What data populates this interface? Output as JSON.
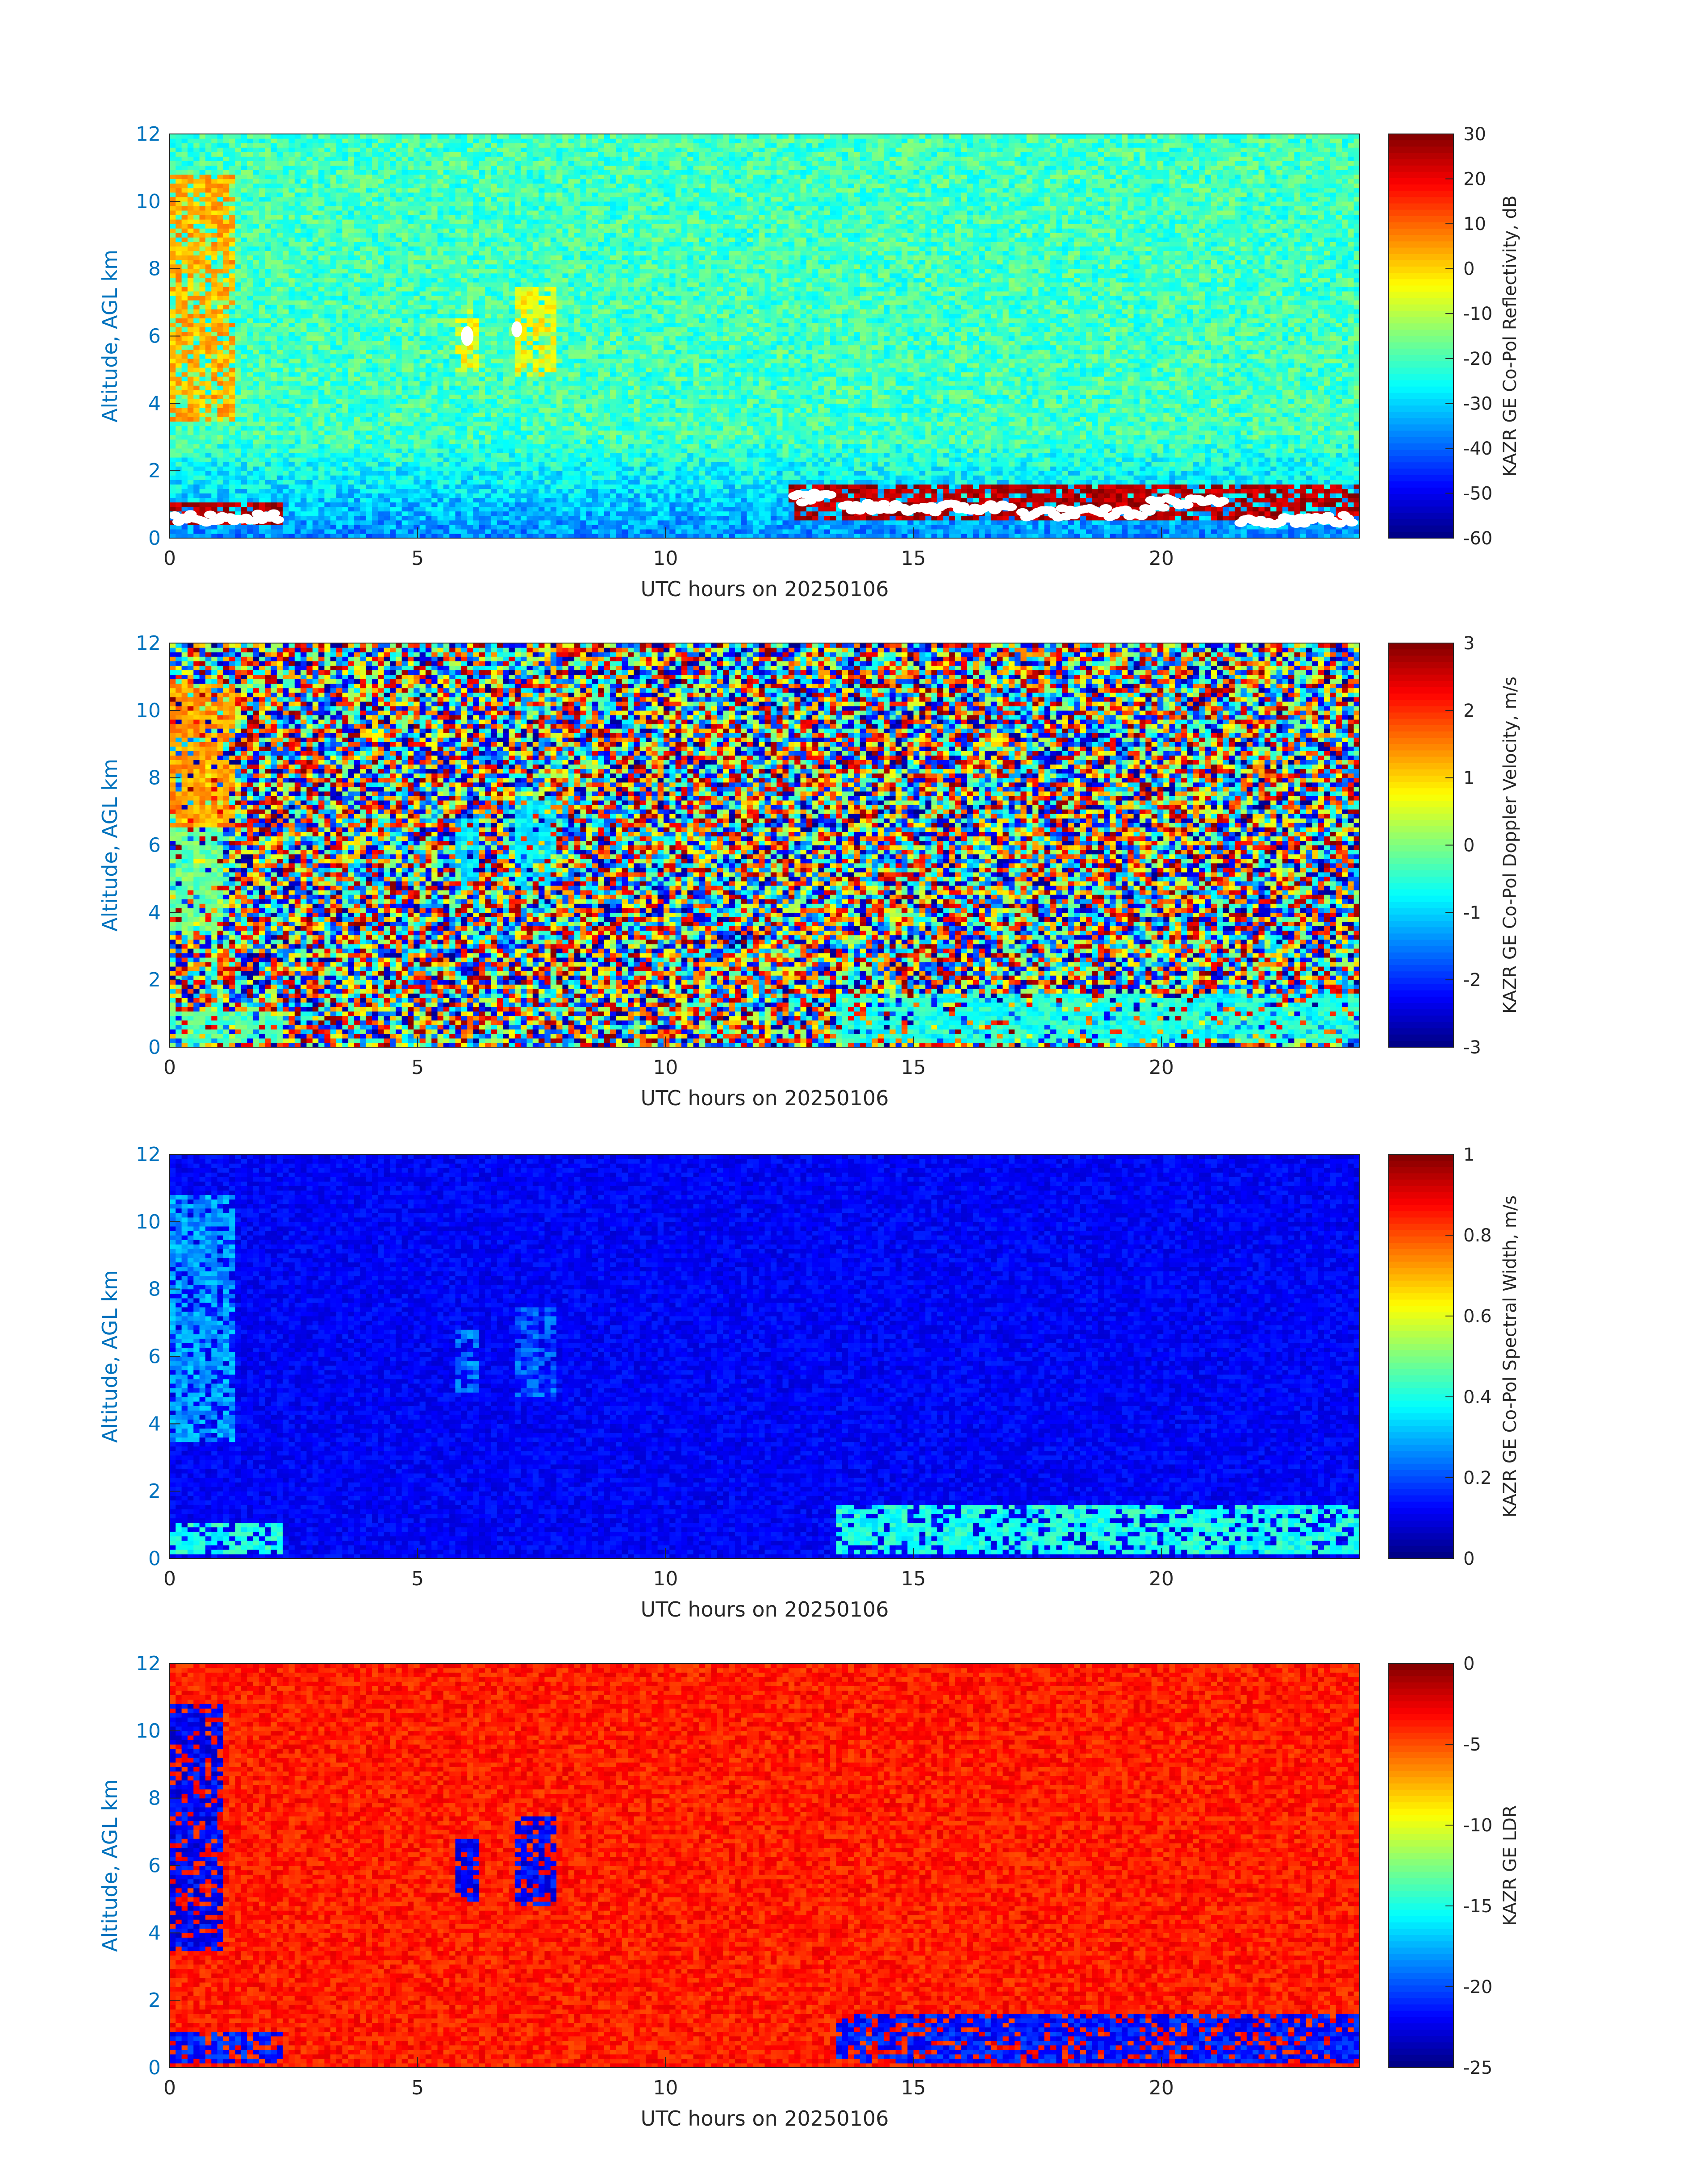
{
  "chart_data": [
    {
      "type": "heatmap",
      "xlabel": "UTC hours on 20250106",
      "ylabel": "Altitude, AGL km",
      "xlim": [
        0,
        24
      ],
      "ylim": [
        0,
        12
      ],
      "xticks": [
        0,
        5,
        10,
        15,
        20
      ],
      "yticks": [
        0,
        2,
        4,
        6,
        8,
        10,
        12
      ],
      "colorbar": {
        "label": "KAZR GE Co-Pol Reflectivity, dB",
        "range": [
          -60,
          30
        ],
        "ticks": [
          30,
          20,
          10,
          0,
          -10,
          -20,
          -30,
          -40,
          -50,
          -60
        ],
        "colormap": "jet"
      },
      "background": {
        "level": 0.44,
        "jitter": 0.08,
        "clear_air_color": "#2ff0d0"
      },
      "features": [
        {
          "x": [
            0.0,
            1.3
          ],
          "y": [
            3.5,
            10.8
          ],
          "desc": "high reflectivity cloud",
          "level": 0.7
        },
        {
          "x": [
            5.8,
            6.2
          ],
          "y": [
            5.0,
            6.8
          ],
          "level": 0.62
        },
        {
          "x": [
            6.9,
            7.8
          ],
          "y": [
            4.8,
            7.5
          ],
          "level": 0.62
        },
        {
          "x": [
            0.0,
            2.3
          ],
          "y": [
            0.4,
            1.0
          ],
          "level": 0.95
        },
        {
          "x": [
            12.5,
            24.0
          ],
          "y": [
            0.5,
            1.6
          ],
          "level": 0.95
        }
      ],
      "missing_value_marks": true
    },
    {
      "type": "heatmap",
      "xlabel": "UTC hours on 20250106",
      "ylabel": "Altitude, AGL km",
      "xlim": [
        0,
        24
      ],
      "ylim": [
        0,
        12
      ],
      "xticks": [
        0,
        5,
        10,
        15,
        20
      ],
      "yticks": [
        0,
        2,
        4,
        6,
        8,
        10,
        12
      ],
      "colorbar": {
        "label": "KAZR GE Co-Pol Doppler Velocity, m/s",
        "range": [
          -3,
          3
        ],
        "ticks": [
          3,
          2,
          1,
          0,
          -1,
          -2,
          -3
        ],
        "colormap": "jet"
      },
      "background": {
        "level": "random-noise"
      },
      "features": [
        {
          "x": [
            0.0,
            1.3
          ],
          "y": [
            6.5,
            10.8
          ],
          "level": 0.72
        },
        {
          "x": [
            0.0,
            1.1
          ],
          "y": [
            3.5,
            6.5
          ],
          "level": 0.48
        },
        {
          "x": [
            5.8,
            6.2
          ],
          "y": [
            5.0,
            6.8
          ],
          "level": 0.35
        },
        {
          "x": [
            6.9,
            7.8
          ],
          "y": [
            4.8,
            7.5
          ],
          "level": 0.35
        },
        {
          "x": [
            0.0,
            2.3
          ],
          "y": [
            0.1,
            1.0
          ],
          "level": 0.45
        },
        {
          "x": [
            13.5,
            24.0
          ],
          "y": [
            0.1,
            1.6
          ],
          "level": 0.4
        }
      ]
    },
    {
      "type": "heatmap",
      "xlabel": "UTC hours on 20250106",
      "ylabel": "Altitude, AGL km",
      "xlim": [
        0,
        24
      ],
      "ylim": [
        0,
        12
      ],
      "xticks": [
        0,
        5,
        10,
        15,
        20
      ],
      "yticks": [
        0,
        2,
        4,
        6,
        8,
        10,
        12
      ],
      "colorbar": {
        "label": "KAZR GE Co-Pol Spectral Width, m/s",
        "range": [
          0,
          1
        ],
        "ticks": [
          1,
          0.8,
          0.6,
          0.4,
          0.2,
          0
        ],
        "colormap": "jet"
      },
      "background": {
        "level": 0.12,
        "jitter": 0.04
      },
      "features": [
        {
          "x": [
            0.0,
            1.3
          ],
          "y": [
            3.5,
            10.8
          ],
          "level": 0.28
        },
        {
          "x": [
            5.8,
            6.2
          ],
          "y": [
            5.0,
            6.8
          ],
          "level": 0.25
        },
        {
          "x": [
            6.9,
            7.8
          ],
          "y": [
            4.8,
            7.5
          ],
          "level": 0.22
        },
        {
          "x": [
            0.0,
            2.3
          ],
          "y": [
            0.1,
            1.0
          ],
          "level": 0.4
        },
        {
          "x": [
            13.5,
            24.0
          ],
          "y": [
            0.1,
            1.6
          ],
          "level": 0.4
        }
      ]
    },
    {
      "type": "heatmap",
      "xlabel": "UTC hours on 20250106",
      "ylabel": "Altitude, AGL km",
      "xlim": [
        0,
        24
      ],
      "ylim": [
        0,
        12
      ],
      "xticks": [
        0,
        5,
        10,
        15,
        20
      ],
      "yticks": [
        0,
        2,
        4,
        6,
        8,
        10,
        12
      ],
      "colorbar": {
        "label": "KAZR GE LDR",
        "range": [
          -25,
          0
        ],
        "ticks": [
          0,
          -5,
          -10,
          -15,
          -20,
          -25
        ],
        "colormap": "jet"
      },
      "background": {
        "level": 0.85,
        "jitter": 0.05
      },
      "features": [
        {
          "x": [
            0.0,
            1.1
          ],
          "y": [
            3.5,
            10.8
          ],
          "level": 0.12
        },
        {
          "x": [
            5.8,
            6.2
          ],
          "y": [
            5.0,
            6.8
          ],
          "level": 0.12
        },
        {
          "x": [
            6.9,
            7.8
          ],
          "y": [
            4.8,
            7.5
          ],
          "level": 0.12
        },
        {
          "x": [
            0.0,
            2.3
          ],
          "y": [
            0.1,
            1.0
          ],
          "level": 0.15
        },
        {
          "x": [
            13.5,
            24.0
          ],
          "y": [
            0.1,
            1.6
          ],
          "level": 0.15
        }
      ]
    }
  ]
}
